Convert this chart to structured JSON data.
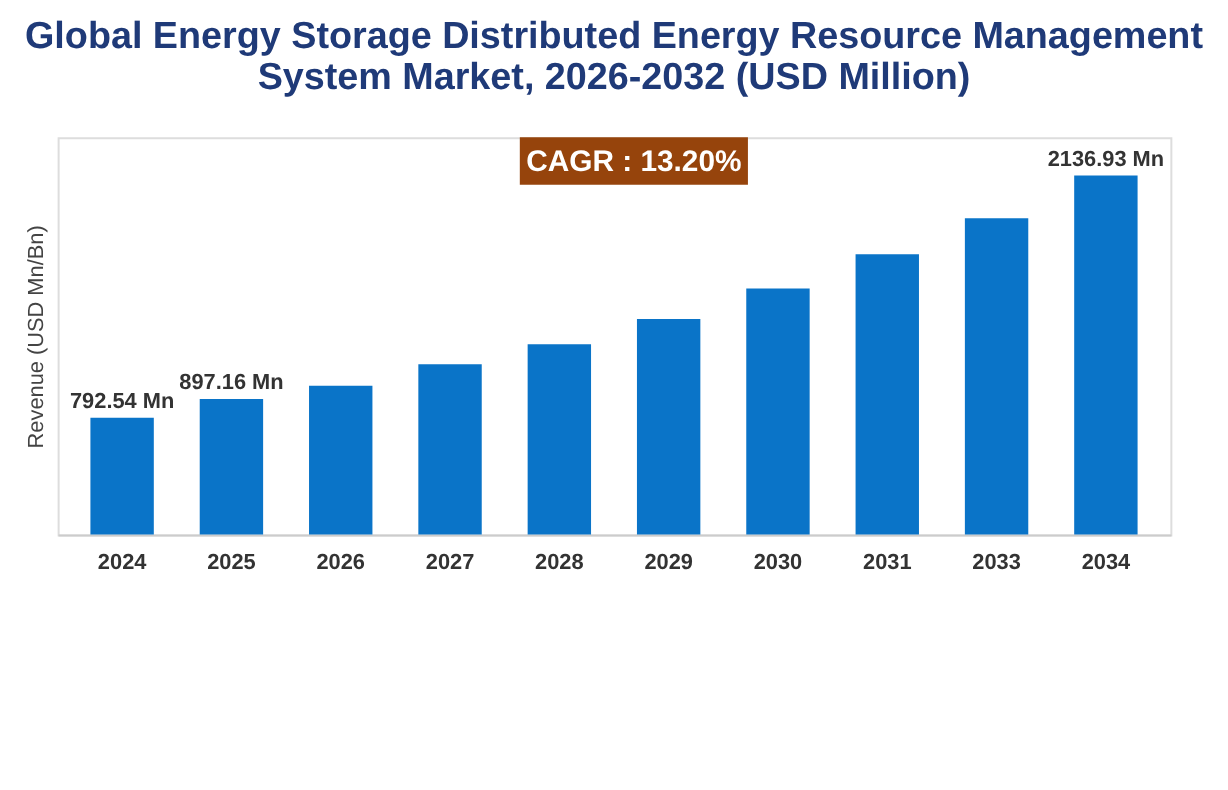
{
  "chart_data": {
    "type": "bar",
    "title": "Global Energy Storage Distributed Energy Resource Management System Market, 2026-2032 (USD Million)",
    "ylabel": "Revenue (USD Mn/Bn)",
    "categories": [
      "2024",
      "2025",
      "2026",
      "2027",
      "2028",
      "2029",
      "2030",
      "2031",
      "2033",
      "2034"
    ],
    "values": [
      792.54,
      897.16,
      970,
      1090,
      1200,
      1340,
      1510,
      1700,
      1900,
      2136.93
    ],
    "value_labels": [
      "792.54 Mn",
      "897.16 Mn",
      null,
      null,
      null,
      null,
      null,
      null,
      null,
      "2136.93 Mn"
    ],
    "color": "#0a74c8",
    "ylim": [
      144,
      2350
    ],
    "tick_labels": "x",
    "grid": false,
    "annotations": [
      "CAGR : 13.20%"
    ]
  }
}
